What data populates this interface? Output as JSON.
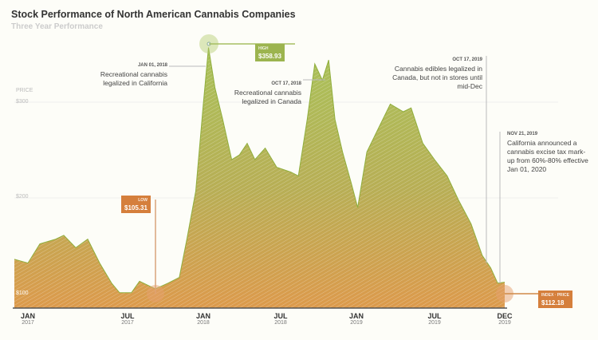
{
  "chart_data": {
    "type": "area",
    "title": "Stock Performance of North American Cannabis Companies",
    "subtitle": "Three Year Performance",
    "ylabel": "PRICE",
    "yticks": [
      {
        "v": 100,
        "label": "$100"
      },
      {
        "v": 200,
        "label": "$200"
      },
      {
        "v": 300,
        "label": "$300"
      }
    ],
    "ylim": [
      86,
      370
    ],
    "xticks": [
      {
        "m": 0,
        "month": "JAN",
        "year": "2017"
      },
      {
        "m": 6,
        "month": "JUL",
        "year": "2017"
      },
      {
        "m": 12,
        "month": "JAN",
        "year": "2018"
      },
      {
        "m": 18,
        "month": "JUL",
        "year": "2018"
      },
      {
        "m": 24,
        "month": "JAN",
        "year": "2019"
      },
      {
        "m": 30,
        "month": "JUL",
        "year": "2019"
      },
      {
        "m": 35,
        "month": "DEC",
        "year": "2019"
      }
    ],
    "x_months": [
      -1,
      0,
      0.72,
      1.68,
      2.16,
      2.88,
      3.6,
      4.32,
      5.04,
      5.52,
      6.3,
      6.95,
      8.2,
      9.2,
      10.1,
      10.7,
      11.4,
      12,
      12.4,
      12.9,
      13.5,
      14.2,
      14.8,
      15.4,
      16,
      16.8,
      17.7,
      18.8,
      19.4,
      20.1,
      20.7,
      21.3,
      21.8,
      22.3,
      22.9,
      23.6,
      24.1,
      24.8,
      25.7,
      26.6,
      27.6,
      28.2,
      29.1,
      30,
      30.9,
      31.7,
      32.6,
      33.4,
      34,
      34.5,
      35
    ],
    "values": [
      136,
      132,
      152,
      157,
      161,
      148,
      157,
      132,
      111,
      101,
      101,
      113,
      105,
      111,
      117,
      157,
      207,
      298,
      357,
      315,
      282,
      240,
      245,
      257,
      240,
      252,
      232,
      227,
      223,
      282,
      340,
      323,
      344,
      282,
      248,
      215,
      190,
      248,
      273,
      298,
      290,
      294,
      257,
      240,
      223,
      198,
      173,
      140,
      127,
      111,
      112
    ],
    "markers": {
      "high": {
        "key": "HIGH",
        "value": "$358.93"
      },
      "low": {
        "key": "LOW",
        "value": "$105.31"
      },
      "current": {
        "key": "INDEX · PRICE",
        "value": "$112.18"
      }
    },
    "annotations": [
      {
        "date": "JAN 01, 2018",
        "text": "Recreational cannabis legalized in California"
      },
      {
        "date": "OCT 17, 2018",
        "text": "Recreational cannabis legalized in Canada"
      },
      {
        "date": "OCT 17, 2019",
        "text": "Cannabis edibles legalized in Canada, but not in stores until mid-Dec"
      },
      {
        "date": "NOV 21, 2019",
        "text": "California announced a cannabis excise tax mark-up from 60%-80% effective Jan 01, 2020"
      }
    ]
  }
}
